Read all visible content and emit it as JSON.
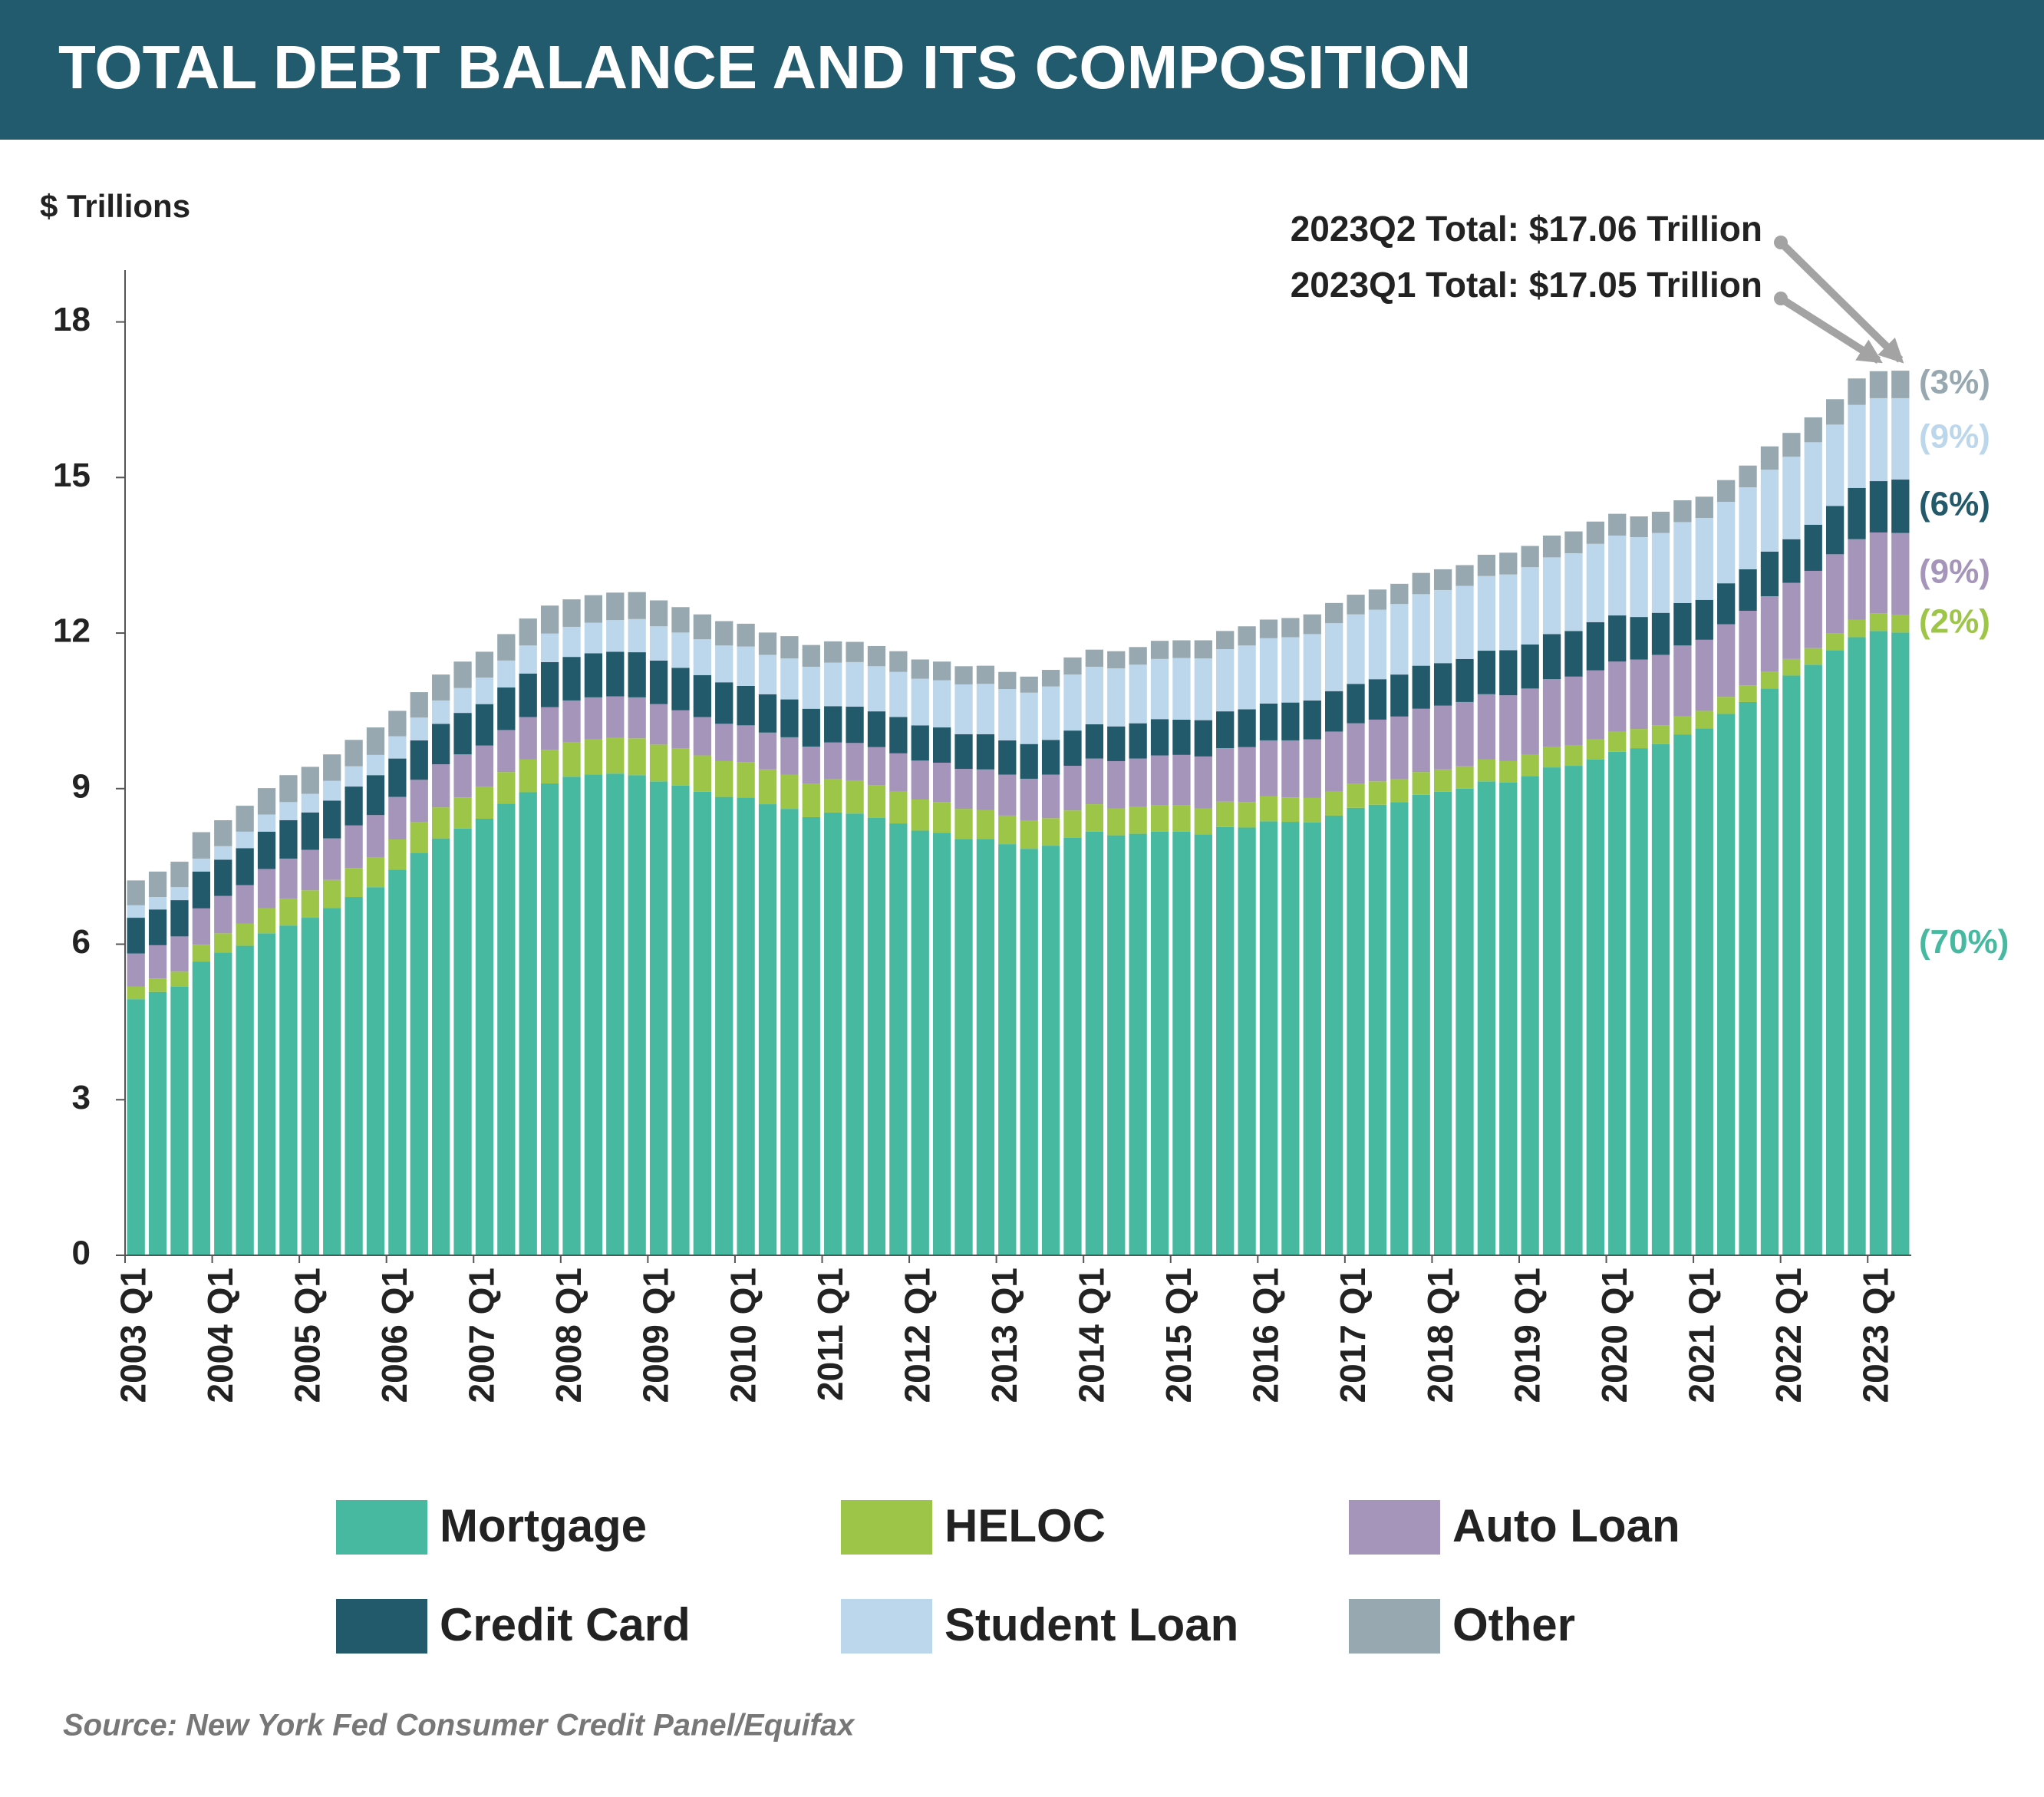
{
  "chart_data": {
    "type": "stacked_bar",
    "title": "TOTAL DEBT BALANCE AND ITS COMPOSITION",
    "y_label": "$ Trillions",
    "source": "Source: New York Fed Consumer Credit Panel/Equifax",
    "annotations": [
      {
        "text": "2023Q2 Total: $17.06 Trillion",
        "index": 81
      },
      {
        "text": "2023Q1 Total: $17.05 Trillion",
        "index": 80
      }
    ],
    "ylim": [
      0,
      19
    ],
    "yticks": [
      0,
      3,
      6,
      9,
      12,
      15,
      18
    ],
    "categories": [
      "2003 Q1",
      null,
      null,
      null,
      "2004 Q1",
      null,
      null,
      null,
      "2005 Q1",
      null,
      null,
      null,
      "2006 Q1",
      null,
      null,
      null,
      "2007 Q1",
      null,
      null,
      null,
      "2008 Q1",
      null,
      null,
      null,
      "2009 Q1",
      null,
      null,
      null,
      "2010 Q1",
      null,
      null,
      null,
      "2011 Q1",
      null,
      null,
      null,
      "2012 Q1",
      null,
      null,
      null,
      "2013 Q1",
      null,
      null,
      null,
      "2014 Q1",
      null,
      null,
      null,
      "2015 Q1",
      null,
      null,
      null,
      "2016 Q1",
      null,
      null,
      null,
      "2017 Q1",
      null,
      null,
      null,
      "2018 Q1",
      null,
      null,
      null,
      "2019 Q1",
      null,
      null,
      null,
      "2020 Q1",
      null,
      null,
      null,
      "2021 Q1",
      null,
      null,
      null,
      "2022 Q1",
      null,
      null,
      null,
      "2023 Q1",
      null
    ],
    "series": [
      {
        "name": "Mortgage",
        "color": "#47b9a0",
        "label": "(70%)",
        "values": [
          4.94,
          5.08,
          5.18,
          5.66,
          5.84,
          5.97,
          6.21,
          6.36,
          6.51,
          6.7,
          6.91,
          7.1,
          7.44,
          7.76,
          8.04,
          8.23,
          8.42,
          8.71,
          8.93,
          9.1,
          9.23,
          9.27,
          9.29,
          9.26,
          9.14,
          9.06,
          8.94,
          8.84,
          8.83,
          8.7,
          8.61,
          8.45,
          8.54,
          8.52,
          8.44,
          8.33,
          8.19,
          8.15,
          8.03,
          8.03,
          7.93,
          7.84,
          7.9,
          8.05,
          8.17,
          8.1,
          8.13,
          8.17,
          8.17,
          8.12,
          8.26,
          8.25,
          8.37,
          8.36,
          8.35,
          8.48,
          8.63,
          8.69,
          8.74,
          8.88,
          8.94,
          9.0,
          9.14,
          9.12,
          9.24,
          9.41,
          9.44,
          9.56,
          9.71,
          9.78,
          9.86,
          10.04,
          10.16,
          10.44,
          10.67,
          10.93,
          11.18,
          11.39,
          11.67,
          11.92,
          12.04,
          12.01
        ]
      },
      {
        "name": "HELOC",
        "color": "#9dc548",
        "label": "(2%)",
        "values": [
          0.24,
          0.26,
          0.29,
          0.33,
          0.37,
          0.43,
          0.48,
          0.52,
          0.53,
          0.54,
          0.56,
          0.57,
          0.58,
          0.59,
          0.6,
          0.6,
          0.61,
          0.61,
          0.63,
          0.65,
          0.66,
          0.68,
          0.69,
          0.71,
          0.71,
          0.71,
          0.7,
          0.69,
          0.68,
          0.67,
          0.66,
          0.65,
          0.64,
          0.64,
          0.63,
          0.61,
          0.6,
          0.59,
          0.58,
          0.56,
          0.55,
          0.54,
          0.53,
          0.53,
          0.53,
          0.52,
          0.52,
          0.51,
          0.51,
          0.5,
          0.49,
          0.49,
          0.48,
          0.47,
          0.47,
          0.46,
          0.46,
          0.45,
          0.44,
          0.44,
          0.43,
          0.43,
          0.42,
          0.41,
          0.41,
          0.4,
          0.4,
          0.39,
          0.39,
          0.37,
          0.36,
          0.35,
          0.34,
          0.33,
          0.32,
          0.32,
          0.32,
          0.32,
          0.33,
          0.34,
          0.34,
          0.34
        ]
      },
      {
        "name": "Auto Loan",
        "color": "#a695bb",
        "label": "(9%)",
        "values": [
          0.64,
          0.64,
          0.68,
          0.7,
          0.72,
          0.74,
          0.76,
          0.77,
          0.78,
          0.8,
          0.82,
          0.82,
          0.82,
          0.82,
          0.83,
          0.83,
          0.8,
          0.81,
          0.82,
          0.82,
          0.81,
          0.81,
          0.8,
          0.79,
          0.78,
          0.74,
          0.74,
          0.72,
          0.71,
          0.71,
          0.72,
          0.71,
          0.71,
          0.72,
          0.73,
          0.74,
          0.75,
          0.76,
          0.77,
          0.78,
          0.79,
          0.81,
          0.84,
          0.86,
          0.88,
          0.91,
          0.93,
          0.96,
          0.97,
          1.0,
          1.03,
          1.06,
          1.08,
          1.1,
          1.13,
          1.16,
          1.17,
          1.19,
          1.21,
          1.22,
          1.23,
          1.24,
          1.26,
          1.27,
          1.28,
          1.3,
          1.32,
          1.33,
          1.35,
          1.34,
          1.36,
          1.37,
          1.37,
          1.4,
          1.44,
          1.46,
          1.47,
          1.49,
          1.52,
          1.55,
          1.56,
          1.58
        ]
      },
      {
        "name": "Credit Card",
        "color": "#225a6b",
        "label": "(6%)",
        "values": [
          0.69,
          0.69,
          0.7,
          0.71,
          0.7,
          0.71,
          0.72,
          0.74,
          0.72,
          0.73,
          0.75,
          0.77,
          0.74,
          0.76,
          0.78,
          0.8,
          0.8,
          0.82,
          0.84,
          0.87,
          0.84,
          0.85,
          0.86,
          0.87,
          0.84,
          0.82,
          0.81,
          0.8,
          0.76,
          0.74,
          0.73,
          0.73,
          0.7,
          0.7,
          0.69,
          0.7,
          0.68,
          0.68,
          0.67,
          0.68,
          0.66,
          0.67,
          0.67,
          0.68,
          0.66,
          0.67,
          0.68,
          0.7,
          0.68,
          0.7,
          0.71,
          0.73,
          0.71,
          0.73,
          0.75,
          0.78,
          0.76,
          0.78,
          0.81,
          0.83,
          0.82,
          0.83,
          0.84,
          0.87,
          0.85,
          0.87,
          0.88,
          0.93,
          0.89,
          0.82,
          0.81,
          0.82,
          0.77,
          0.79,
          0.8,
          0.86,
          0.84,
          0.89,
          0.93,
          0.99,
          0.99,
          1.03
        ]
      },
      {
        "name": "Student Loan",
        "color": "#bcd7eb",
        "label": "(9%)",
        "values": [
          0.24,
          0.24,
          0.25,
          0.25,
          0.26,
          0.32,
          0.33,
          0.35,
          0.36,
          0.38,
          0.39,
          0.39,
          0.43,
          0.44,
          0.45,
          0.48,
          0.51,
          0.52,
          0.54,
          0.55,
          0.58,
          0.59,
          0.61,
          0.64,
          0.66,
          0.68,
          0.69,
          0.71,
          0.76,
          0.76,
          0.79,
          0.81,
          0.84,
          0.86,
          0.87,
          0.87,
          0.9,
          0.91,
          0.96,
          0.97,
          0.99,
          0.99,
          1.03,
          1.08,
          1.11,
          1.12,
          1.13,
          1.16,
          1.19,
          1.19,
          1.2,
          1.23,
          1.26,
          1.26,
          1.28,
          1.31,
          1.34,
          1.34,
          1.36,
          1.38,
          1.41,
          1.41,
          1.44,
          1.46,
          1.49,
          1.48,
          1.5,
          1.51,
          1.54,
          1.54,
          1.54,
          1.56,
          1.58,
          1.57,
          1.58,
          1.58,
          1.59,
          1.59,
          1.57,
          1.6,
          1.6,
          1.57
        ]
      },
      {
        "name": "Other",
        "color": "#97a8b0",
        "label": "(3%)",
        "values": [
          0.48,
          0.49,
          0.49,
          0.51,
          0.5,
          0.5,
          0.51,
          0.52,
          0.52,
          0.51,
          0.51,
          0.53,
          0.49,
          0.49,
          0.5,
          0.51,
          0.5,
          0.51,
          0.52,
          0.54,
          0.53,
          0.53,
          0.53,
          0.52,
          0.5,
          0.49,
          0.48,
          0.47,
          0.44,
          0.43,
          0.43,
          0.42,
          0.41,
          0.39,
          0.39,
          0.4,
          0.37,
          0.36,
          0.35,
          0.35,
          0.33,
          0.31,
          0.32,
          0.33,
          0.33,
          0.33,
          0.34,
          0.35,
          0.34,
          0.35,
          0.35,
          0.37,
          0.36,
          0.37,
          0.38,
          0.39,
          0.38,
          0.39,
          0.39,
          0.41,
          0.4,
          0.4,
          0.41,
          0.42,
          0.41,
          0.42,
          0.42,
          0.43,
          0.42,
          0.4,
          0.41,
          0.42,
          0.41,
          0.42,
          0.42,
          0.45,
          0.46,
          0.48,
          0.49,
          0.51,
          0.52,
          0.53
        ]
      }
    ]
  }
}
